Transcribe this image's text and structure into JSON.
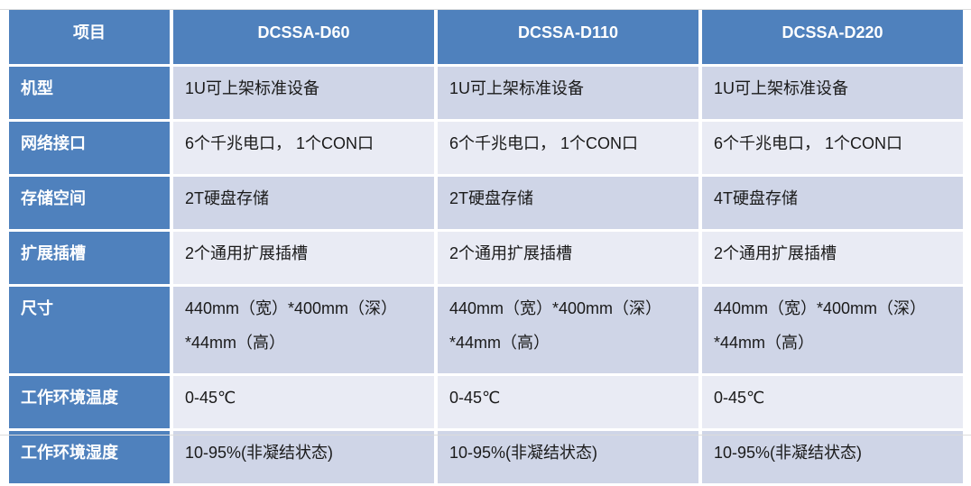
{
  "colors": {
    "header_bg": "#4F81BD",
    "band_dark": "#CFD5E7",
    "band_light": "#E9EBF4",
    "header_text": "#FFFFFF",
    "body_text": "#1A1A1A"
  },
  "table": {
    "columns": [
      "项目",
      "DCSSA-D60",
      "DCSSA-D110",
      "DCSSA-D220"
    ],
    "rows": [
      {
        "label": "机型",
        "values": [
          "1U可上架标准设备",
          "1U可上架标准设备",
          "1U可上架标准设备"
        ],
        "tall": false
      },
      {
        "label": "网络接口",
        "values": [
          "6个千兆电口， 1个CON口",
          "6个千兆电口， 1个CON口",
          "6个千兆电口， 1个CON口"
        ],
        "tall": false
      },
      {
        "label": "存储空间",
        "values": [
          "2T硬盘存储",
          "2T硬盘存储",
          "4T硬盘存储"
        ],
        "tall": false
      },
      {
        "label": "扩展插槽",
        "values": [
          "2个通用扩展插槽",
          "2个通用扩展插槽",
          "2个通用扩展插槽"
        ],
        "tall": false
      },
      {
        "label": "尺寸",
        "values": [
          "440mm（宽）*400mm（深）\n*44mm（高）",
          "440mm（宽）*400mm（深）\n*44mm（高）",
          "440mm（宽）*400mm（深）\n*44mm（高）"
        ],
        "tall": true
      },
      {
        "label": "工作环境温度",
        "values": [
          "0-45℃",
          "0-45℃",
          "0-45℃"
        ],
        "tall": false
      },
      {
        "label": "工作环境湿度",
        "values": [
          "10-95%(非凝结状态)",
          "10-95%(非凝结状态)",
          "10-95%(非凝结状态)"
        ],
        "tall": false
      }
    ]
  }
}
